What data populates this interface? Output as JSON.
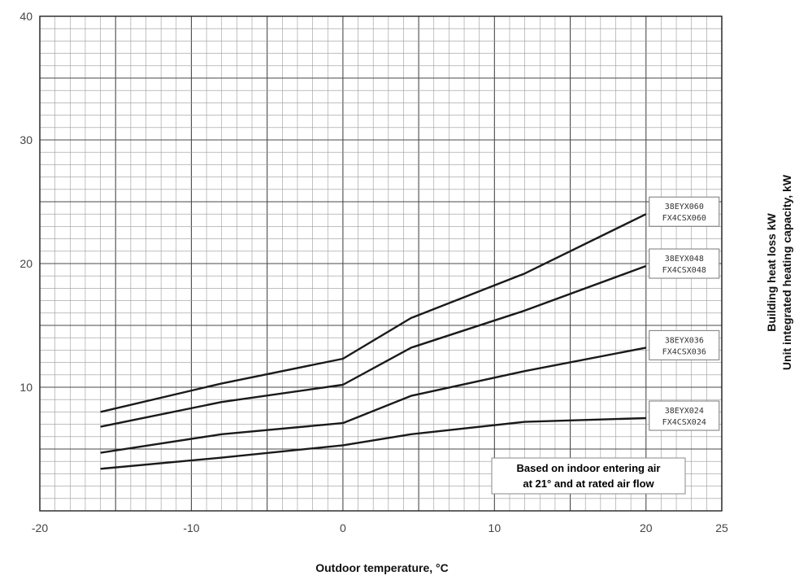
{
  "chart_data": {
    "type": "line",
    "title": "",
    "xlabel": "Outdoor temperature, °C",
    "ylabel": [
      "Building heat loss kW",
      "Unit integrated heating capacity, kW"
    ],
    "xlim": [
      -20,
      25
    ],
    "ylim": [
      0,
      40
    ],
    "xticks": [
      -20,
      -10,
      0,
      10,
      20,
      25
    ],
    "yticks": [
      10,
      20,
      30,
      40
    ],
    "grid": true,
    "annotation": [
      "Based on indoor entering air",
      "at 21° and at rated air flow"
    ],
    "series": [
      {
        "name": [
          "38EYX060",
          "FX4CSX060"
        ],
        "points": [
          [
            -16,
            8.0
          ],
          [
            -8,
            10.3
          ],
          [
            0,
            12.3
          ],
          [
            4.5,
            15.6
          ],
          [
            12,
            19.2
          ],
          [
            20,
            24.0
          ]
        ]
      },
      {
        "name": [
          "38EYX048",
          "FX4CSX048"
        ],
        "points": [
          [
            -16,
            6.8
          ],
          [
            -8,
            8.8
          ],
          [
            0,
            10.2
          ],
          [
            4.5,
            13.2
          ],
          [
            12,
            16.2
          ],
          [
            20,
            19.8
          ]
        ]
      },
      {
        "name": [
          "38EYX036",
          "FX4CSX036"
        ],
        "points": [
          [
            -16,
            4.7
          ],
          [
            -8,
            6.2
          ],
          [
            0,
            7.1
          ],
          [
            4.5,
            9.3
          ],
          [
            12,
            11.3
          ],
          [
            20,
            13.2
          ]
        ]
      },
      {
        "name": [
          "38EYX024",
          "FX4CSX024"
        ],
        "points": [
          [
            -16,
            3.4
          ],
          [
            -8,
            4.3
          ],
          [
            0,
            5.3
          ],
          [
            4.5,
            6.2
          ],
          [
            12,
            7.2
          ],
          [
            20,
            7.5
          ]
        ]
      }
    ]
  }
}
